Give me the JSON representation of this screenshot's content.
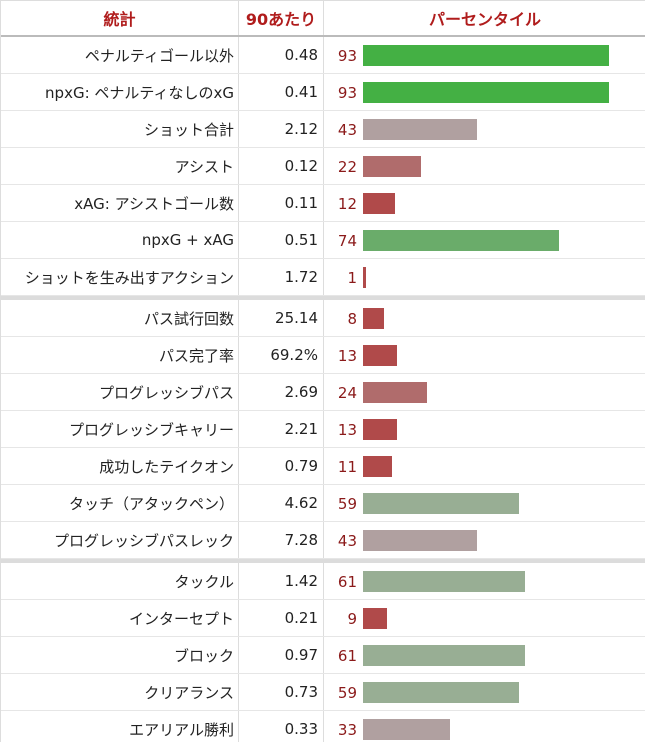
{
  "header": {
    "stat_label": "統計",
    "per90_label": "90あたり",
    "percentile_label": "パーセンタイル"
  },
  "colors": {
    "accent": "#b01c1c",
    "percentile_text": "#8b1a1a",
    "bar_high": "#44b044",
    "bar_above_avg": "#6aac6a",
    "bar_avg_green": "#98ae94",
    "bar_avg_red": "#b0a0a0",
    "bar_below_avg": "#b06c6c",
    "bar_low": "#b04a4a"
  },
  "chart_data": {
    "type": "bar",
    "orientation": "horizontal",
    "xlim": [
      0,
      100
    ],
    "groups": [
      {
        "rows": [
          {
            "stat": "ペナルティゴール以外",
            "per90": "0.48",
            "percentile": 93,
            "color": "#44b044"
          },
          {
            "stat": "npxG: ペナルティなしのxG",
            "per90": "0.41",
            "percentile": 93,
            "color": "#44b044"
          },
          {
            "stat": "ショット合計",
            "per90": "2.12",
            "percentile": 43,
            "color": "#b0a0a0"
          },
          {
            "stat": "アシスト",
            "per90": "0.12",
            "percentile": 22,
            "color": "#b06c6c"
          },
          {
            "stat": "xAG: アシストゴール数",
            "per90": "0.11",
            "percentile": 12,
            "color": "#b04a4a"
          },
          {
            "stat": "npxG + xAG",
            "per90": "0.51",
            "percentile": 74,
            "color": "#6aac6a"
          },
          {
            "stat": "ショットを生み出すアクション",
            "per90": "1.72",
            "percentile": 1,
            "color": "#b04a4a"
          }
        ]
      },
      {
        "rows": [
          {
            "stat": "パス試行回数",
            "per90": "25.14",
            "percentile": 8,
            "color": "#b04a4a"
          },
          {
            "stat": "パス完了率",
            "per90": "69.2%",
            "percentile": 13,
            "color": "#b04a4a"
          },
          {
            "stat": "プログレッシブパス",
            "per90": "2.69",
            "percentile": 24,
            "color": "#b06c6c"
          },
          {
            "stat": "プログレッシブキャリー",
            "per90": "2.21",
            "percentile": 13,
            "color": "#b04a4a"
          },
          {
            "stat": "成功したテイクオン",
            "per90": "0.79",
            "percentile": 11,
            "color": "#b04a4a"
          },
          {
            "stat": "タッチ（アタックペン）",
            "per90": "4.62",
            "percentile": 59,
            "color": "#98ae94"
          },
          {
            "stat": "プログレッシブパスレック",
            "per90": "7.28",
            "percentile": 43,
            "color": "#b0a0a0"
          }
        ]
      },
      {
        "rows": [
          {
            "stat": "タックル",
            "per90": "1.42",
            "percentile": 61,
            "color": "#98ae94"
          },
          {
            "stat": "インターセプト",
            "per90": "0.21",
            "percentile": 9,
            "color": "#b04a4a"
          },
          {
            "stat": "ブロック",
            "per90": "0.97",
            "percentile": 61,
            "color": "#98ae94"
          },
          {
            "stat": "クリアランス",
            "per90": "0.73",
            "percentile": 59,
            "color": "#98ae94"
          },
          {
            "stat": "エアリアル勝利",
            "per90": "0.33",
            "percentile": 33,
            "color": "#b0a0a0"
          }
        ]
      }
    ]
  }
}
